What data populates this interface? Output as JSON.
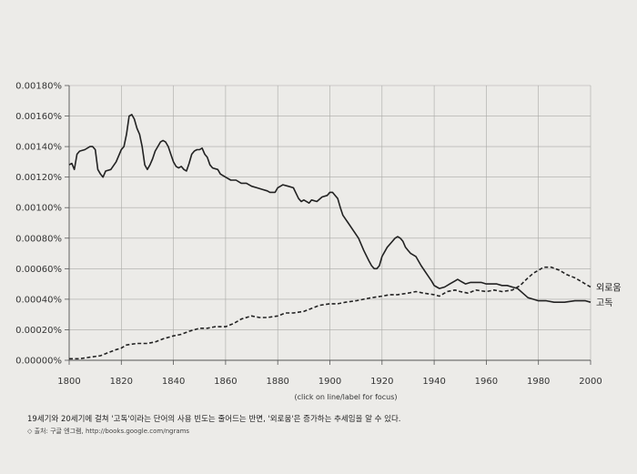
{
  "chart_data": {
    "type": "line",
    "xlim": [
      1800,
      2000
    ],
    "ylim": [
      0,
      0.0018
    ],
    "x_ticks": [
      "1800",
      "1820",
      "1840",
      "1860",
      "1880",
      "1900",
      "1920",
      "1940",
      "1960",
      "1980",
      "2000"
    ],
    "y_ticks": [
      "0.00000%",
      "0.00020%",
      "0.00040%",
      "0.00060%",
      "0.00080%",
      "0.00100%",
      "0.00120%",
      "0.00140%",
      "0.00160%",
      "0.00180%"
    ],
    "x_axis_note": "(click on line/label for focus)",
    "grid": true,
    "series": [
      {
        "name": "고독",
        "style": "solid",
        "color": "#222222",
        "points": [
          [
            1800,
            0.00128
          ],
          [
            1801,
            0.00129
          ],
          [
            1802,
            0.00125
          ],
          [
            1803,
            0.00135
          ],
          [
            1804,
            0.00137
          ],
          [
            1806,
            0.00138
          ],
          [
            1808,
            0.0014
          ],
          [
            1809,
            0.0014
          ],
          [
            1810,
            0.00138
          ],
          [
            1811,
            0.00125
          ],
          [
            1812,
            0.00122
          ],
          [
            1813,
            0.0012
          ],
          [
            1814,
            0.00124
          ],
          [
            1816,
            0.00125
          ],
          [
            1818,
            0.0013
          ],
          [
            1820,
            0.00138
          ],
          [
            1821,
            0.0014
          ],
          [
            1822,
            0.00148
          ],
          [
            1823,
            0.0016
          ],
          [
            1824,
            0.00161
          ],
          [
            1825,
            0.00158
          ],
          [
            1826,
            0.00152
          ],
          [
            1827,
            0.00148
          ],
          [
            1828,
            0.0014
          ],
          [
            1829,
            0.00128
          ],
          [
            1830,
            0.00125
          ],
          [
            1831,
            0.00128
          ],
          [
            1832,
            0.00132
          ],
          [
            1833,
            0.00137
          ],
          [
            1834,
            0.0014
          ],
          [
            1835,
            0.00143
          ],
          [
            1836,
            0.00144
          ],
          [
            1837,
            0.00143
          ],
          [
            1838,
            0.0014
          ],
          [
            1839,
            0.00135
          ],
          [
            1840,
            0.0013
          ],
          [
            1841,
            0.00127
          ],
          [
            1842,
            0.00126
          ],
          [
            1843,
            0.00127
          ],
          [
            1844,
            0.00125
          ],
          [
            1845,
            0.00124
          ],
          [
            1846,
            0.00129
          ],
          [
            1847,
            0.00135
          ],
          [
            1848,
            0.00137
          ],
          [
            1849,
            0.00138
          ],
          [
            1850,
            0.00138
          ],
          [
            1851,
            0.00139
          ],
          [
            1852,
            0.00135
          ],
          [
            1853,
            0.00133
          ],
          [
            1854,
            0.00128
          ],
          [
            1855,
            0.00126
          ],
          [
            1857,
            0.00125
          ],
          [
            1858,
            0.00122
          ],
          [
            1860,
            0.0012
          ],
          [
            1862,
            0.00118
          ],
          [
            1864,
            0.00118
          ],
          [
            1866,
            0.00116
          ],
          [
            1868,
            0.00116
          ],
          [
            1870,
            0.00114
          ],
          [
            1872,
            0.00113
          ],
          [
            1874,
            0.00112
          ],
          [
            1876,
            0.00111
          ],
          [
            1877,
            0.0011
          ],
          [
            1879,
            0.0011
          ],
          [
            1880,
            0.00113
          ],
          [
            1882,
            0.00115
          ],
          [
            1884,
            0.00114
          ],
          [
            1886,
            0.00113
          ],
          [
            1888,
            0.00106
          ],
          [
            1889,
            0.00104
          ],
          [
            1890,
            0.00105
          ],
          [
            1892,
            0.00103
          ],
          [
            1893,
            0.00105
          ],
          [
            1895,
            0.00104
          ],
          [
            1897,
            0.00107
          ],
          [
            1899,
            0.00108
          ],
          [
            1900,
            0.0011
          ],
          [
            1901,
            0.0011
          ],
          [
            1902,
            0.00108
          ],
          [
            1903,
            0.00106
          ],
          [
            1904,
            0.001
          ],
          [
            1905,
            0.00095
          ],
          [
            1907,
            0.0009
          ],
          [
            1909,
            0.00085
          ],
          [
            1911,
            0.0008
          ],
          [
            1913,
            0.00072
          ],
          [
            1915,
            0.00065
          ],
          [
            1916,
            0.00062
          ],
          [
            1917,
            0.0006
          ],
          [
            1918,
            0.0006
          ],
          [
            1919,
            0.00062
          ],
          [
            1920,
            0.00068
          ],
          [
            1922,
            0.00074
          ],
          [
            1924,
            0.00078
          ],
          [
            1925,
            0.0008
          ],
          [
            1926,
            0.00081
          ],
          [
            1927,
            0.0008
          ],
          [
            1928,
            0.00078
          ],
          [
            1929,
            0.00074
          ],
          [
            1930,
            0.00072
          ],
          [
            1931,
            0.0007
          ],
          [
            1933,
            0.00068
          ],
          [
            1935,
            0.00062
          ],
          [
            1937,
            0.00057
          ],
          [
            1939,
            0.00052
          ],
          [
            1940,
            0.00049
          ],
          [
            1941,
            0.00048
          ],
          [
            1942,
            0.00047
          ],
          [
            1944,
            0.00048
          ],
          [
            1946,
            0.0005
          ],
          [
            1948,
            0.00052
          ],
          [
            1949,
            0.00053
          ],
          [
            1950,
            0.00052
          ],
          [
            1952,
            0.0005
          ],
          [
            1954,
            0.00051
          ],
          [
            1956,
            0.00051
          ],
          [
            1958,
            0.00051
          ],
          [
            1960,
            0.0005
          ],
          [
            1962,
            0.0005
          ],
          [
            1964,
            0.0005
          ],
          [
            1966,
            0.00049
          ],
          [
            1968,
            0.00049
          ],
          [
            1970,
            0.00048
          ],
          [
            1972,
            0.00047
          ],
          [
            1974,
            0.00044
          ],
          [
            1976,
            0.00041
          ],
          [
            1978,
            0.0004
          ],
          [
            1980,
            0.00039
          ],
          [
            1983,
            0.00039
          ],
          [
            1986,
            0.00038
          ],
          [
            1990,
            0.00038
          ],
          [
            1994,
            0.00039
          ],
          [
            1998,
            0.00039
          ],
          [
            2000,
            0.00038
          ]
        ]
      },
      {
        "name": "외로움",
        "style": "dashed",
        "color": "#222222",
        "points": [
          [
            1800,
            1e-05
          ],
          [
            1804,
            1e-05
          ],
          [
            1808,
            2e-05
          ],
          [
            1812,
            3e-05
          ],
          [
            1815,
            5e-05
          ],
          [
            1818,
            7e-05
          ],
          [
            1820,
            8e-05
          ],
          [
            1822,
            0.0001
          ],
          [
            1826,
            0.00011
          ],
          [
            1830,
            0.00011
          ],
          [
            1833,
            0.00012
          ],
          [
            1836,
            0.00014
          ],
          [
            1840,
            0.00016
          ],
          [
            1843,
            0.00017
          ],
          [
            1846,
            0.00019
          ],
          [
            1850,
            0.00021
          ],
          [
            1853,
            0.00021
          ],
          [
            1856,
            0.00022
          ],
          [
            1860,
            0.00022
          ],
          [
            1863,
            0.00024
          ],
          [
            1866,
            0.00027
          ],
          [
            1870,
            0.00029
          ],
          [
            1873,
            0.00028
          ],
          [
            1876,
            0.00028
          ],
          [
            1880,
            0.00029
          ],
          [
            1883,
            0.00031
          ],
          [
            1886,
            0.00031
          ],
          [
            1890,
            0.00032
          ],
          [
            1893,
            0.00034
          ],
          [
            1896,
            0.00036
          ],
          [
            1900,
            0.00037
          ],
          [
            1903,
            0.00037
          ],
          [
            1906,
            0.00038
          ],
          [
            1910,
            0.00039
          ],
          [
            1913,
            0.0004
          ],
          [
            1916,
            0.00041
          ],
          [
            1920,
            0.00042
          ],
          [
            1923,
            0.00043
          ],
          [
            1926,
            0.00043
          ],
          [
            1930,
            0.00044
          ],
          [
            1933,
            0.00045
          ],
          [
            1936,
            0.00044
          ],
          [
            1940,
            0.00043
          ],
          [
            1942,
            0.00042
          ],
          [
            1945,
            0.00045
          ],
          [
            1948,
            0.00046
          ],
          [
            1950,
            0.00045
          ],
          [
            1953,
            0.00044
          ],
          [
            1956,
            0.00046
          ],
          [
            1960,
            0.00045
          ],
          [
            1963,
            0.00046
          ],
          [
            1966,
            0.00045
          ],
          [
            1970,
            0.00046
          ],
          [
            1973,
            0.00049
          ],
          [
            1976,
            0.00054
          ],
          [
            1978,
            0.00057
          ],
          [
            1980,
            0.00059
          ],
          [
            1982,
            0.00061
          ],
          [
            1985,
            0.00061
          ],
          [
            1988,
            0.00059
          ],
          [
            1991,
            0.00056
          ],
          [
            1994,
            0.00054
          ],
          [
            1997,
            0.00051
          ],
          [
            2000,
            0.00048
          ]
        ]
      }
    ]
  },
  "caption": "19세기와 20세기에 걸쳐 '고독'이라는 단어의 사용 빈도는 줄어드는 반면, '외로움'은 증가하는 추세임을 알 수 있다.",
  "source": "◇ 출처: 구글 엔그램, http://books.google.com/ngrams"
}
